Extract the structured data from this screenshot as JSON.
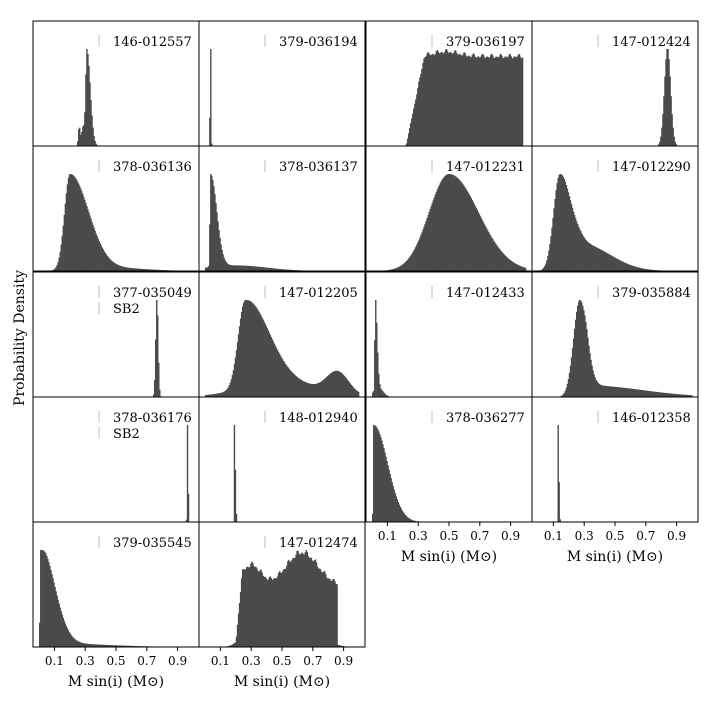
{
  "chart_data": {
    "type": "histogram-grid",
    "ylabel": "Probability Density",
    "xlabel": "M sin(i) (M⊙)",
    "xlim": [
      0.0,
      1.0
    ],
    "xticks": [
      0.1,
      0.3,
      0.5,
      0.7,
      0.9
    ],
    "xtick_labels": [
      "0.1",
      "0.3",
      "0.5",
      "0.7",
      "0.9"
    ],
    "panels": [
      {
        "id": "146-012557",
        "note": "",
        "dist": [
          {
            "type": "asym",
            "c": 0.31,
            "wl": 0.008,
            "wr": 0.022,
            "a": 1.0
          },
          {
            "type": "gauss",
            "c": 0.285,
            "w": 0.01,
            "a": 0.2
          },
          {
            "type": "gauss",
            "c": 0.26,
            "w": 0.006,
            "a": 0.2
          }
        ]
      },
      {
        "id": "379-036194",
        "note": "",
        "dist": [
          {
            "type": "gauss",
            "c": 0.035,
            "w": 0.003,
            "a": 1.0
          }
        ]
      },
      {
        "id": "379-036197",
        "note": "",
        "dist": [
          {
            "type": "plateau",
            "x0": 0.22,
            "x1": 0.98,
            "ramp": 0.12,
            "a": 0.93,
            "noise": 0.03
          },
          {
            "type": "gauss",
            "c": 0.48,
            "w": 0.08,
            "a": 0.05
          }
        ]
      },
      {
        "id": "147-012424",
        "note": "",
        "dist": [
          {
            "type": "gauss",
            "c": 0.84,
            "w": 0.02,
            "a": 1.0
          }
        ]
      },
      {
        "id": "378-036136",
        "note": "",
        "dist": [
          {
            "type": "asym",
            "c": 0.2,
            "wl": 0.035,
            "wr": 0.12,
            "a": 1.0
          },
          {
            "type": "gauss",
            "c": 0.5,
            "w": 0.2,
            "a": 0.03
          }
        ]
      },
      {
        "id": "378-036137",
        "note": "",
        "dist": [
          {
            "type": "asym",
            "c": 0.035,
            "wl": 0.004,
            "wr": 0.04,
            "a": 1.0
          },
          {
            "type": "gauss",
            "c": 0.2,
            "w": 0.2,
            "a": 0.06
          }
        ]
      },
      {
        "id": "147-012231",
        "note": "",
        "dist": [
          {
            "type": "asym",
            "c": 0.5,
            "wl": 0.13,
            "wr": 0.19,
            "a": 1.0
          }
        ]
      },
      {
        "id": "147-012290",
        "note": "",
        "dist": [
          {
            "type": "asym",
            "c": 0.14,
            "wl": 0.04,
            "wr": 0.07,
            "a": 1.0
          },
          {
            "type": "asym",
            "c": 0.29,
            "wl": 0.07,
            "wr": 0.18,
            "a": 0.28
          }
        ]
      },
      {
        "id": "377-035049",
        "note": "SB2",
        "dist": [
          {
            "type": "gauss",
            "c": 0.765,
            "w": 0.008,
            "a": 1.0
          }
        ]
      },
      {
        "id": "147-012205",
        "note": "",
        "dist": [
          {
            "type": "asym",
            "c": 0.26,
            "wl": 0.045,
            "wr": 0.15,
            "a": 1.0
          },
          {
            "type": "gauss",
            "c": 0.5,
            "w": 0.25,
            "a": 0.16
          },
          {
            "type": "gauss",
            "c": 0.86,
            "w": 0.07,
            "a": 0.24
          }
        ]
      },
      {
        "id": "147-012433",
        "note": "",
        "dist": [
          {
            "type": "asym",
            "c": 0.02,
            "wl": 0.003,
            "wr": 0.012,
            "a": 1.0
          },
          {
            "type": "gauss",
            "c": 0.04,
            "w": 0.03,
            "a": 0.1
          }
        ]
      },
      {
        "id": "379-035884",
        "note": "",
        "dist": [
          {
            "type": "asym",
            "c": 0.27,
            "wl": 0.04,
            "wr": 0.045,
            "a": 1.0
          },
          {
            "type": "asym",
            "c": 0.32,
            "wl": 0.02,
            "wr": 0.35,
            "a": 0.12
          }
        ]
      },
      {
        "id": "378-036176",
        "note": "SB2",
        "dist": [
          {
            "type": "gauss",
            "c": 0.965,
            "w": 0.003,
            "a": 1.0
          }
        ]
      },
      {
        "id": "148-012940",
        "note": "",
        "dist": [
          {
            "type": "asym",
            "c": 0.19,
            "wl": 0.002,
            "wr": 0.006,
            "a": 1.0
          }
        ]
      },
      {
        "id": "378-036277",
        "note": "",
        "dist": [
          {
            "type": "asym",
            "c": 0.01,
            "wl": 0.003,
            "wr": 0.09,
            "a": 1.0
          }
        ]
      },
      {
        "id": "146-012358",
        "note": "",
        "dist": [
          {
            "type": "asym",
            "c": 0.13,
            "wl": 0.002,
            "wr": 0.005,
            "a": 1.0
          }
        ]
      },
      {
        "id": "379-035545",
        "note": "",
        "dist": [
          {
            "type": "asym",
            "c": 0.01,
            "wl": 0.004,
            "wr": 0.09,
            "a": 1.0
          },
          {
            "type": "asym",
            "c": 0.05,
            "wl": 0.02,
            "wr": 0.35,
            "a": 0.04
          }
        ]
      },
      {
        "id": "147-012474",
        "note": "",
        "dist": [
          {
            "type": "plateau",
            "x0": 0.2,
            "x1": 0.86,
            "ramp": 0.04,
            "a": 0.6,
            "noise": 0.04
          },
          {
            "type": "gauss",
            "c": 0.3,
            "w": 0.06,
            "a": 0.2
          },
          {
            "type": "gauss",
            "c": 0.63,
            "w": 0.1,
            "a": 0.32
          }
        ]
      }
    ]
  }
}
